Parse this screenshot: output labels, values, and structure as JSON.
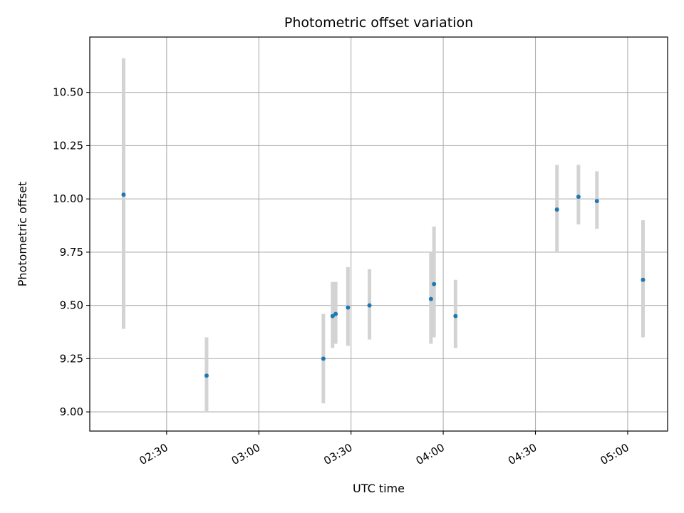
{
  "chart_data": {
    "type": "scatter",
    "title": "Photometric offset variation",
    "xlabel": "UTC time",
    "ylabel": "Photometric offset",
    "x_ticks": [
      "02:30",
      "03:00",
      "03:30",
      "04:00",
      "04:30",
      "05:00"
    ],
    "y_ticks": [
      "9.00",
      "9.25",
      "9.50",
      "9.75",
      "10.00",
      "10.25",
      "10.50"
    ],
    "xlim": [
      "02:05",
      "05:13"
    ],
    "ylim": [
      8.91,
      10.76
    ],
    "grid": true,
    "colors": {
      "point": "#1f77b4",
      "errorbar": "#d3d3d3",
      "grid": "#b0b0b0"
    },
    "points": [
      {
        "x": "02:16",
        "y": 10.02,
        "low": 9.39,
        "high": 10.66
      },
      {
        "x": "02:43",
        "y": 9.17,
        "low": 9.0,
        "high": 9.35
      },
      {
        "x": "03:21",
        "y": 9.25,
        "low": 9.04,
        "high": 9.46
      },
      {
        "x": "03:24",
        "y": 9.45,
        "low": 9.3,
        "high": 9.61
      },
      {
        "x": "03:25",
        "y": 9.46,
        "low": 9.32,
        "high": 9.61
      },
      {
        "x": "03:29",
        "y": 9.49,
        "low": 9.31,
        "high": 9.68
      },
      {
        "x": "03:36",
        "y": 9.5,
        "low": 9.34,
        "high": 9.67
      },
      {
        "x": "03:56",
        "y": 9.53,
        "low": 9.32,
        "high": 9.75
      },
      {
        "x": "03:57",
        "y": 9.6,
        "low": 9.35,
        "high": 9.87
      },
      {
        "x": "04:04",
        "y": 9.45,
        "low": 9.3,
        "high": 9.62
      },
      {
        "x": "04:37",
        "y": 9.95,
        "low": 9.75,
        "high": 10.16
      },
      {
        "x": "04:44",
        "y": 10.01,
        "low": 9.88,
        "high": 10.16
      },
      {
        "x": "04:50",
        "y": 9.99,
        "low": 9.86,
        "high": 10.13
      },
      {
        "x": "05:05",
        "y": 9.62,
        "low": 9.35,
        "high": 9.9
      }
    ]
  }
}
